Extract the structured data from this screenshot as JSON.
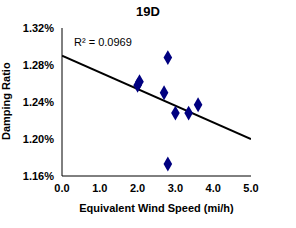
{
  "chart_data": {
    "type": "scatter",
    "title": "19D",
    "annotation": "R² = 0.0969",
    "x_label": "Equivalent Wind Speed (mi/h)",
    "y_label": "Damping Ratio",
    "x": [
      2.0,
      2.05,
      2.7,
      2.8,
      2.8,
      3.0,
      3.35,
      3.6
    ],
    "values": [
      1.258,
      1.262,
      1.25,
      1.288,
      1.173,
      1.228,
      1.228,
      1.237
    ],
    "color": "#000080",
    "marker": "diamond",
    "trendline": {
      "x": [
        0,
        5
      ],
      "values": [
        1.29,
        1.2
      ],
      "color": "#000000"
    },
    "xlim": [
      0,
      5
    ],
    "xticks": [
      {
        "value": 0,
        "label": "0.0"
      },
      {
        "value": 1,
        "label": "1.0"
      },
      {
        "value": 2,
        "label": "2.0"
      },
      {
        "value": 3,
        "label": "3.0"
      },
      {
        "value": 4,
        "label": "4.0"
      },
      {
        "value": 5,
        "label": "5.0"
      }
    ],
    "ylim": [
      1.16,
      1.32
    ],
    "yticks": [
      {
        "value": 1.16,
        "label": "1.16%"
      },
      {
        "value": 1.2,
        "label": "1.20%"
      },
      {
        "value": 1.24,
        "label": "1.24%"
      },
      {
        "value": 1.28,
        "label": "1.28%"
      },
      {
        "value": 1.32,
        "label": "1.32%"
      }
    ],
    "grid": false
  }
}
